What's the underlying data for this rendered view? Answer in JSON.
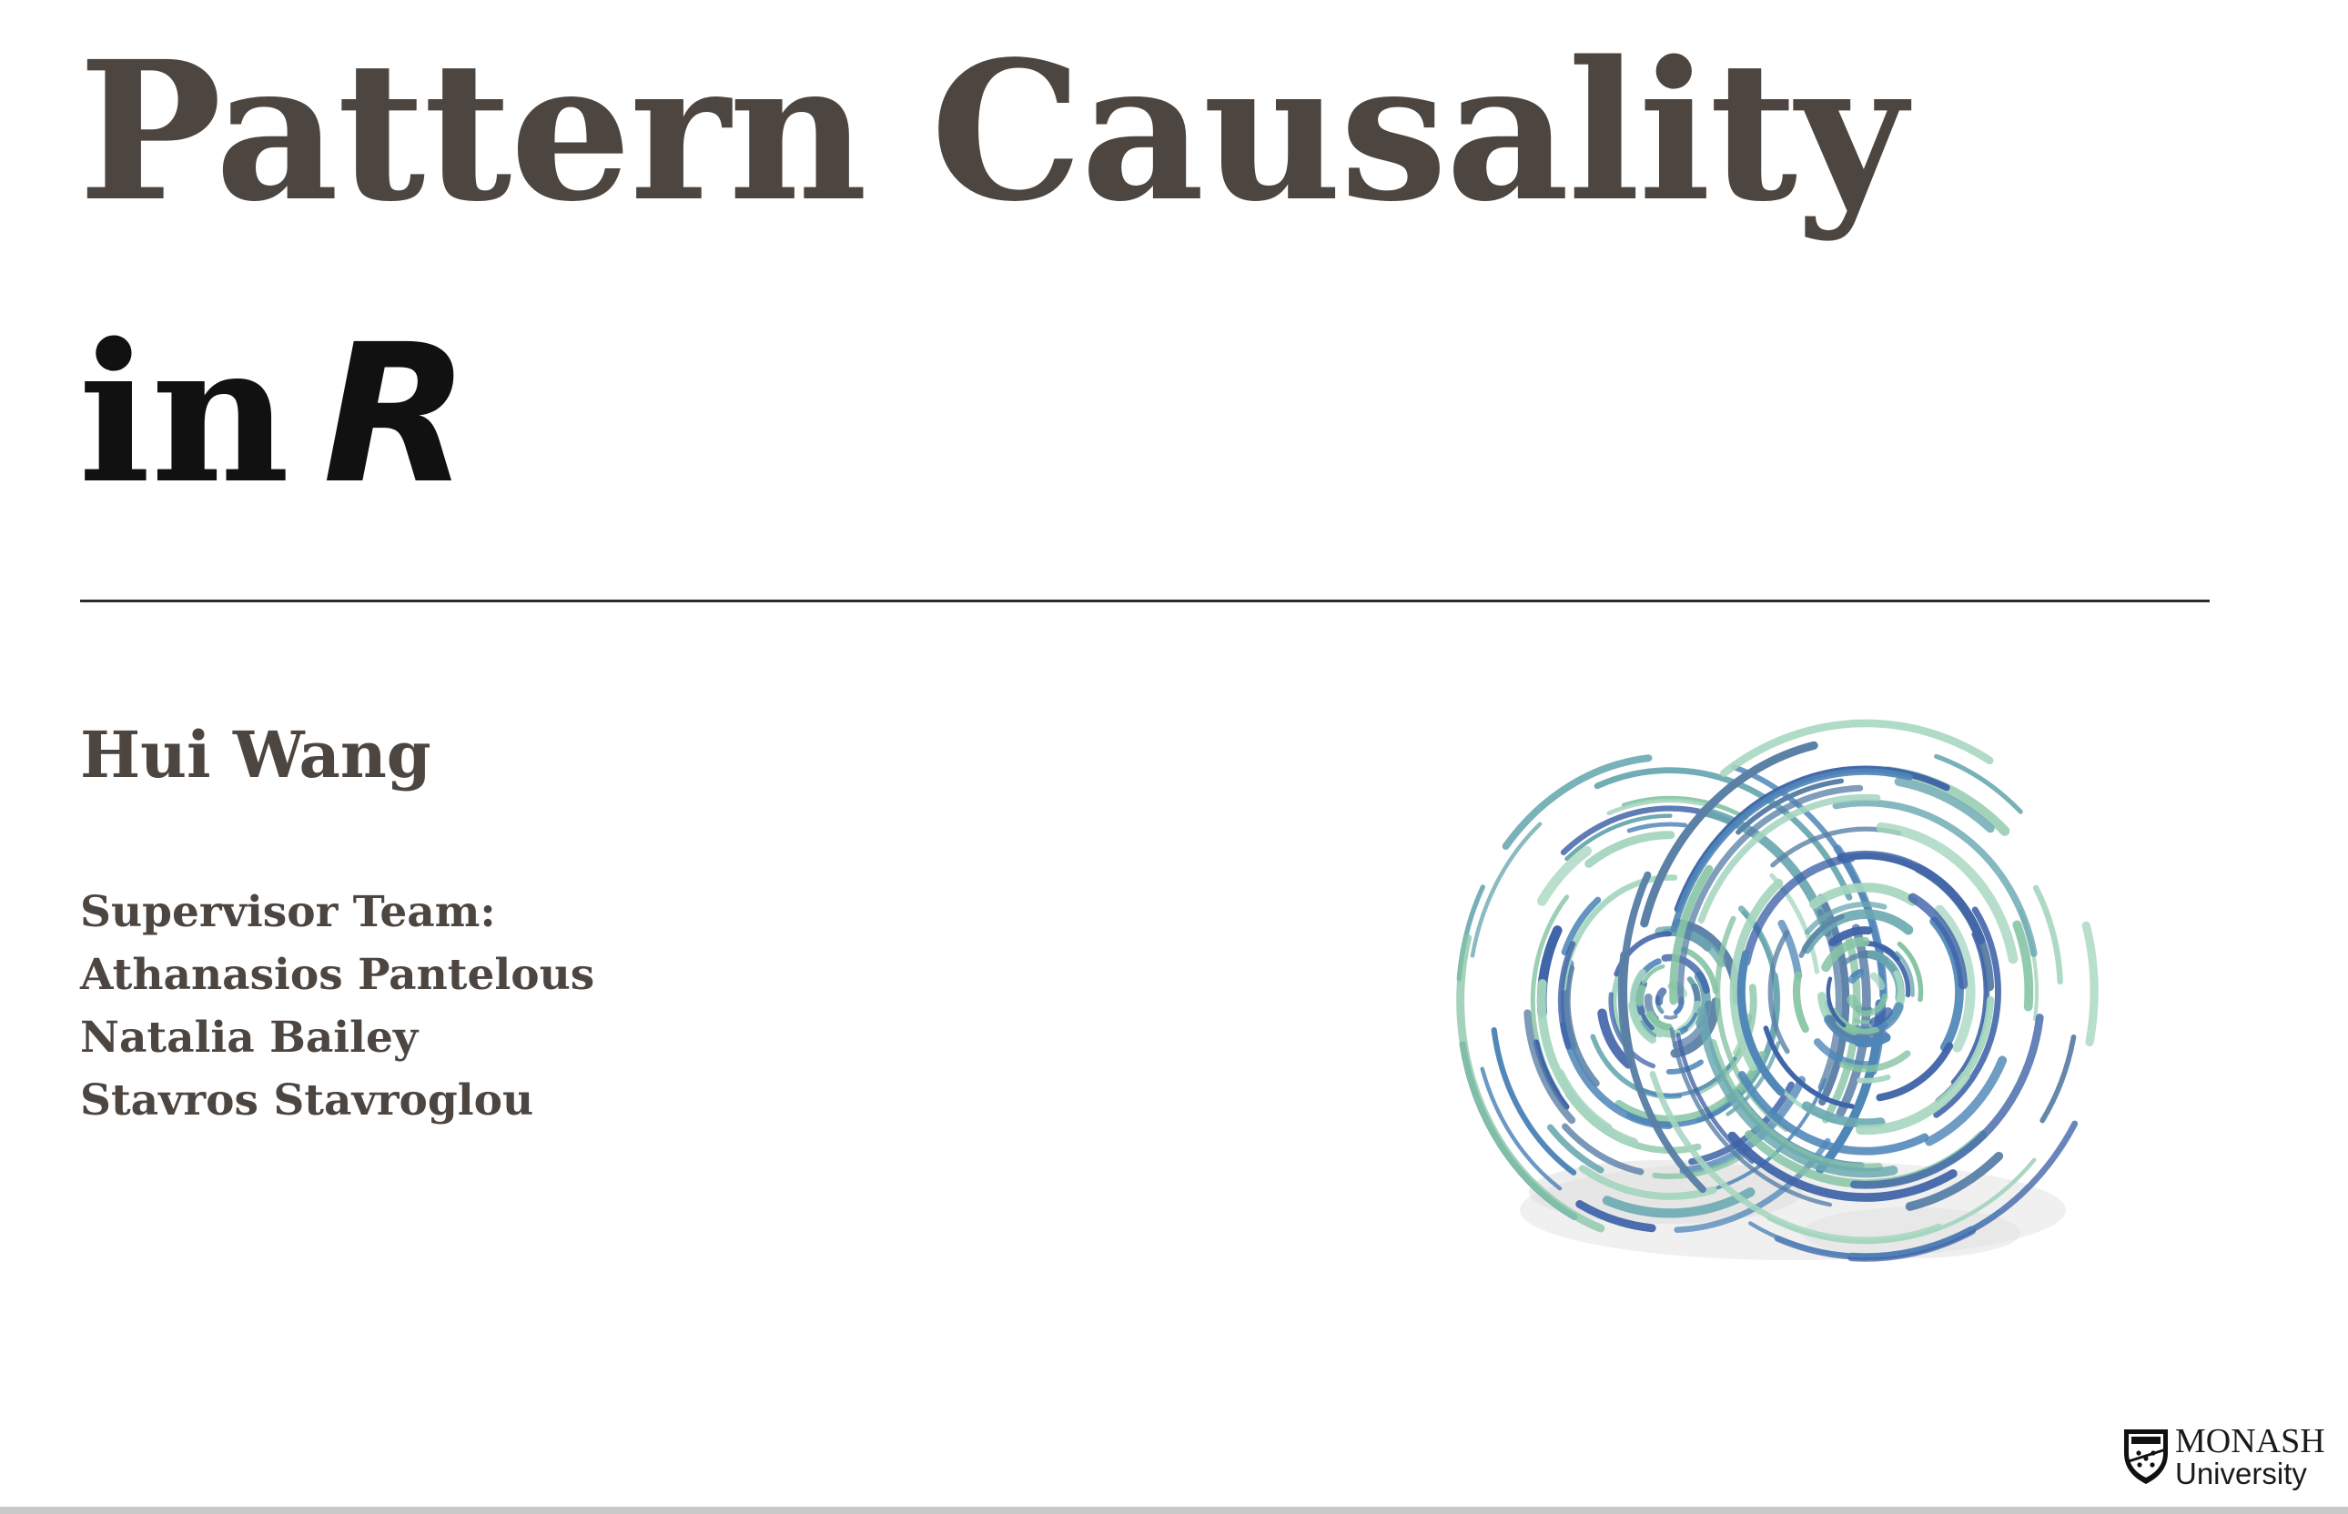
{
  "slide": {
    "title_line1": "Pattern Causality",
    "title_line2_prefix": "in",
    "title_line2_emphasis": "R",
    "author": "Hui Wang",
    "supervisor_heading": "Supervisor Team:",
    "supervisors": [
      "Athanasios Pantelous",
      "Natalia Bailey",
      "Stavros Stavroglou"
    ],
    "logo": {
      "line1": "MONASH",
      "line2": "University",
      "icon": "monash-crest-icon"
    },
    "illustration": {
      "icon": "lorenz-attractor-swirl-icon"
    },
    "colors": {
      "title": "#4d4540",
      "title_line2": "#111111",
      "swirl_palette": [
        "#3f63a8",
        "#4f86b8",
        "#6aa8b0",
        "#86c4a4",
        "#a6d6bf",
        "#5a7fa6"
      ]
    }
  }
}
